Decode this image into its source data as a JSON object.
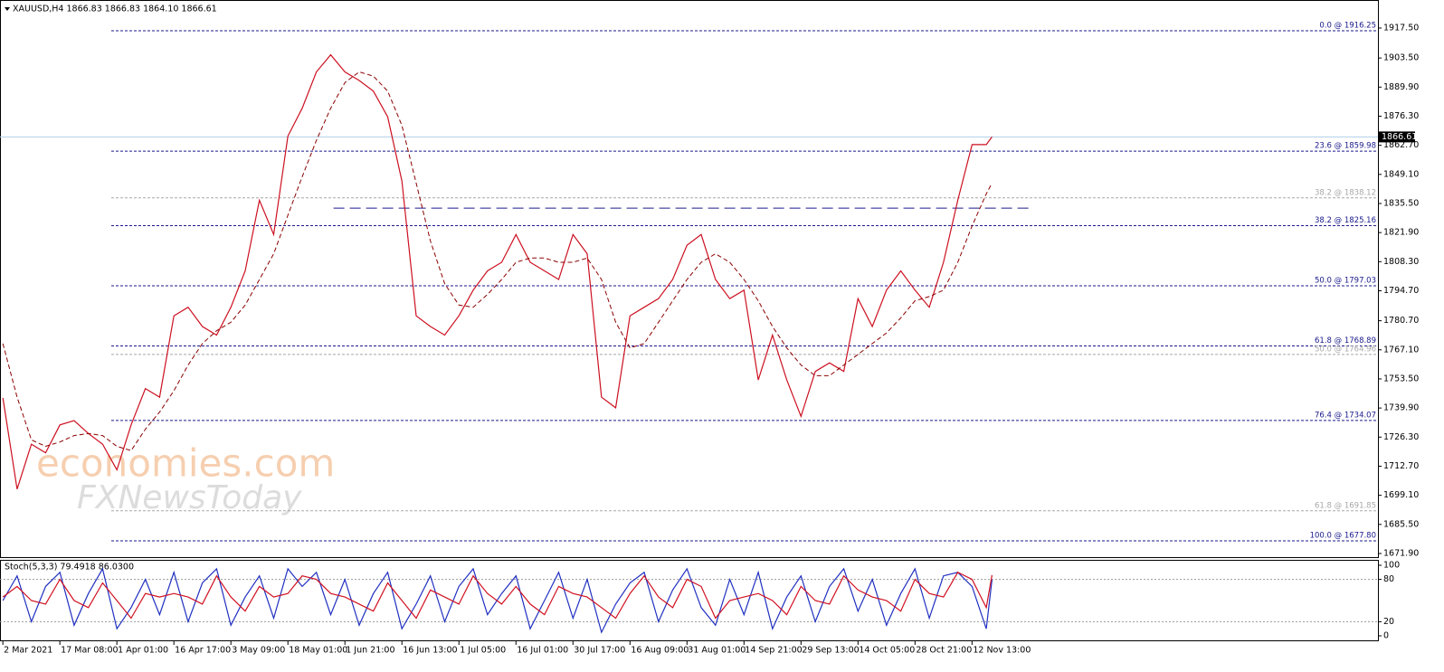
{
  "chart_data": [
    {
      "type": "line",
      "title": "XAUUSD,H4  1866.83 1866.83 1864.10 1866.61",
      "watermark": [
        "economies.com",
        "FXNewsToday"
      ],
      "x": [
        0,
        25,
        50,
        75,
        100,
        125,
        150,
        175,
        200,
        225,
        250,
        275,
        300,
        325,
        350,
        375,
        400,
        425,
        450,
        475,
        500,
        525,
        550,
        575,
        600,
        625,
        650,
        675,
        700,
        725,
        750,
        775,
        800,
        825,
        850,
        875,
        900,
        925,
        950,
        975,
        1000,
        1025,
        1050,
        1075,
        1100,
        1125,
        1150,
        1175,
        1200,
        1225,
        1250,
        1275,
        1300,
        1325,
        1350,
        1375,
        1400,
        1425,
        1450,
        1475,
        1500,
        1525,
        1550,
        1575,
        1600,
        1625,
        1650,
        1675,
        1700,
        1725,
        1735
      ],
      "series": [
        {
          "name": "XAUUSD",
          "color": "#cc1020",
          "dash": false,
          "values": [
            1744.6,
            1702,
            1723,
            1719,
            1732,
            1734,
            1728,
            1723,
            1711,
            1732,
            1749,
            1745,
            1783,
            1787,
            1778,
            1774,
            1787,
            1804,
            1837,
            1821,
            1867,
            1880,
            1897,
            1905,
            1897,
            1893,
            1888,
            1876,
            1846,
            1783,
            1778,
            1774,
            1783,
            1795,
            1804,
            1808,
            1821,
            1808,
            1804,
            1800,
            1821,
            1812,
            1745,
            1740,
            1783,
            1787,
            1791,
            1800,
            1816,
            1821,
            1800,
            1791,
            1795,
            1753,
            1774,
            1753,
            1736,
            1757,
            1761,
            1757,
            1791,
            1778,
            1795,
            1804,
            1795,
            1787,
            1808,
            1837,
            1863,
            1863,
            1866.61
          ]
        },
        {
          "name": "MA",
          "color": "#8b0000",
          "dash": true,
          "values": [
            1770,
            1745,
            1725,
            1722,
            1724,
            1727,
            1728,
            1727,
            1722,
            1720,
            1730,
            1738,
            1748,
            1760,
            1770,
            1776,
            1780,
            1788,
            1800,
            1812,
            1830,
            1848,
            1865,
            1880,
            1892,
            1897,
            1895,
            1888,
            1872,
            1845,
            1818,
            1798,
            1788,
            1787,
            1793,
            1800,
            1808,
            1810,
            1810,
            1808,
            1808,
            1810,
            1800,
            1780,
            1768,
            1770,
            1780,
            1790,
            1800,
            1808,
            1812,
            1808,
            1800,
            1790,
            1778,
            1768,
            1760,
            1755,
            1755,
            1760,
            1765,
            1770,
            1775,
            1782,
            1790,
            1792,
            1795,
            1808,
            1825,
            1840,
            1845
          ]
        }
      ],
      "xlim": [
        -5,
        2412
      ],
      "ylim": [
        1670.2,
        1923.0
      ],
      "yticks": [
        {
          "value": 1917.5,
          "label": "1917.50"
        },
        {
          "value": 1903.5,
          "label": "1903.50"
        },
        {
          "value": 1889.9,
          "label": "1889.90"
        },
        {
          "value": 1876.3,
          "label": "1876.30"
        },
        {
          "value": 1862.7,
          "label": "1862.70"
        },
        {
          "value": 1849.1,
          "label": "1849.10"
        },
        {
          "value": 1835.5,
          "label": "1835.50"
        },
        {
          "value": 1821.9,
          "label": "1821.90"
        },
        {
          "value": 1808.3,
          "label": "1808.30"
        },
        {
          "value": 1794.7,
          "label": "1794.70"
        },
        {
          "value": 1780.7,
          "label": "1780.70"
        },
        {
          "value": 1767.1,
          "label": "1767.10"
        },
        {
          "value": 1753.5,
          "label": "1753.50"
        },
        {
          "value": 1739.9,
          "label": "1739.90"
        },
        {
          "value": 1726.3,
          "label": "1726.30"
        },
        {
          "value": 1712.7,
          "label": "1712.70"
        },
        {
          "value": 1699.1,
          "label": "1699.10"
        },
        {
          "value": 1685.5,
          "label": "1685.50"
        },
        {
          "value": 1671.9,
          "label": "1671.90"
        }
      ],
      "levels": [
        {
          "label": "0.0 @ 1916.25",
          "value": 1916.25,
          "color": "#1a1a8c"
        },
        {
          "label": "23.6 @ 1859.98",
          "value": 1859.98,
          "color": "#1a1a8c"
        },
        {
          "label": "38.2 @ 1838.12",
          "value": 1838.12,
          "color": "#a8a8a8"
        },
        {
          "label": "38.2 @ 1825.16",
          "value": 1825.16,
          "color": "#1a1a8c"
        },
        {
          "label": "50.0 @ 1797.03",
          "value": 1797.03,
          "color": "#1a1a8c"
        },
        {
          "label": "61.8 @ 1768.89",
          "value": 1768.89,
          "color": "#1a1a8c"
        },
        {
          "label": "50.0 @ 1764.96",
          "value": 1764.96,
          "color": "#a8a8a8"
        },
        {
          "label": "76.4 @ 1734.07",
          "value": 1734.07,
          "color": "#1a1a8c"
        },
        {
          "label": "61.8 @ 1691.85",
          "value": 1691.85,
          "color": "#a8a8a8"
        },
        {
          "label": "100.0 @ 1677.80",
          "value": 1677.8,
          "color": "#1a1a8c"
        }
      ],
      "resistance": {
        "value": 1833.3,
        "x": [
          580,
          1800
        ],
        "color": "#1a1a8c"
      },
      "last_price": 1866.61
    },
    {
      "type": "line",
      "title": "Stoch(5,3,3) 79.4918 86.0300",
      "x": [
        0,
        25,
        50,
        75,
        100,
        125,
        150,
        175,
        200,
        225,
        250,
        275,
        300,
        325,
        350,
        375,
        400,
        425,
        450,
        475,
        500,
        525,
        550,
        575,
        600,
        625,
        650,
        675,
        700,
        725,
        750,
        775,
        800,
        825,
        850,
        875,
        900,
        925,
        950,
        975,
        1000,
        1025,
        1050,
        1075,
        1100,
        1125,
        1150,
        1175,
        1200,
        1225,
        1250,
        1275,
        1300,
        1325,
        1350,
        1375,
        1400,
        1425,
        1450,
        1475,
        1500,
        1525,
        1550,
        1575,
        1600,
        1625,
        1650,
        1675,
        1700,
        1725,
        1735
      ],
      "series": [
        {
          "name": "%K",
          "color": "#2030c0",
          "dash": false,
          "values": [
            50,
            85,
            20,
            70,
            90,
            15,
            60,
            95,
            10,
            40,
            80,
            30,
            90,
            20,
            75,
            95,
            15,
            55,
            85,
            25,
            95,
            70,
            90,
            30,
            80,
            15,
            60,
            90,
            10,
            45,
            85,
            20,
            70,
            95,
            30,
            60,
            85,
            10,
            50,
            90,
            25,
            80,
            5,
            45,
            75,
            90,
            20,
            65,
            95,
            40,
            15,
            80,
            30,
            90,
            10,
            55,
            85,
            20,
            70,
            95,
            35,
            80,
            15,
            60,
            95,
            25,
            85,
            90,
            70,
            10,
            79.4918
          ]
        },
        {
          "name": "%D",
          "color": "#d01020",
          "dash": false,
          "values": [
            55,
            70,
            50,
            45,
            80,
            50,
            40,
            75,
            50,
            25,
            60,
            55,
            60,
            55,
            45,
            85,
            55,
            35,
            70,
            55,
            60,
            85,
            80,
            60,
            55,
            45,
            35,
            75,
            50,
            25,
            65,
            55,
            45,
            85,
            60,
            45,
            70,
            45,
            30,
            70,
            60,
            55,
            40,
            25,
            60,
            85,
            55,
            40,
            80,
            70,
            25,
            50,
            55,
            60,
            50,
            30,
            70,
            50,
            45,
            85,
            65,
            55,
            50,
            35,
            80,
            60,
            55,
            90,
            80,
            40,
            86.03
          ]
        }
      ],
      "xlim": [
        -5,
        2412
      ],
      "ylim": [
        -6.4,
        106.4
      ],
      "yticks": [
        100,
        80,
        20,
        0
      ],
      "levels_plain": [
        80,
        20
      ],
      "xticks": [
        {
          "value": 0,
          "label": "2 Mar 2021"
        },
        {
          "value": 100,
          "label": "17 Mar 08:00"
        },
        {
          "value": 200,
          "label": "1 Apr 01:00"
        },
        {
          "value": 300,
          "label": "16 Apr 17:00"
        },
        {
          "value": 400,
          "label": "3 May 09:00"
        },
        {
          "value": 500,
          "label": "18 May 01:00"
        },
        {
          "value": 600,
          "label": "1 Jun 21:00"
        },
        {
          "value": 700,
          "label": "16 Jun 13:00"
        },
        {
          "value": 800,
          "label": "1 Jul 05:00"
        },
        {
          "value": 900,
          "label": "16 Jul 01:00"
        },
        {
          "value": 1000,
          "label": "30 Jul 17:00"
        },
        {
          "value": 1100,
          "label": "16 Aug 09:00"
        },
        {
          "value": 1200,
          "label": "31 Aug 01:00"
        },
        {
          "value": 1300,
          "label": "14 Sep 21:00"
        },
        {
          "value": 1400,
          "label": "29 Sep 13:00"
        },
        {
          "value": 1500,
          "label": "14 Oct 05:00"
        },
        {
          "value": 1600,
          "label": "28 Oct 21:00"
        },
        {
          "value": 1700,
          "label": "12 Nov 13:00"
        }
      ]
    }
  ]
}
